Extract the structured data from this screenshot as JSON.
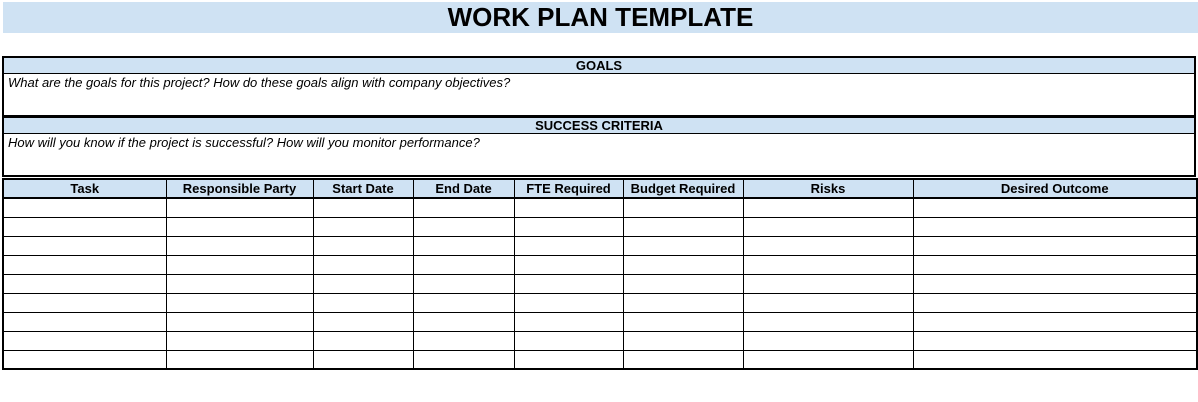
{
  "title": "WORK PLAN TEMPLATE",
  "sections": {
    "goals": {
      "header": "GOALS",
      "hint": "What are the goals for this project? How do these goals align with company objectives?"
    },
    "success_criteria": {
      "header": "SUCCESS CRITERIA",
      "hint": "How will you know if the project is successful? How will you monitor performance?"
    }
  },
  "table": {
    "columns": [
      "Task",
      "Responsible Party",
      "Start Date",
      "End Date",
      "FTE Required",
      "Budget Required",
      "Risks",
      "Desired Outcome"
    ],
    "row_count": 9,
    "cell_values": []
  },
  "colors": {
    "accent": "#cfe2f3",
    "border": "#000000",
    "background": "#ffffff",
    "text": "#000000"
  }
}
